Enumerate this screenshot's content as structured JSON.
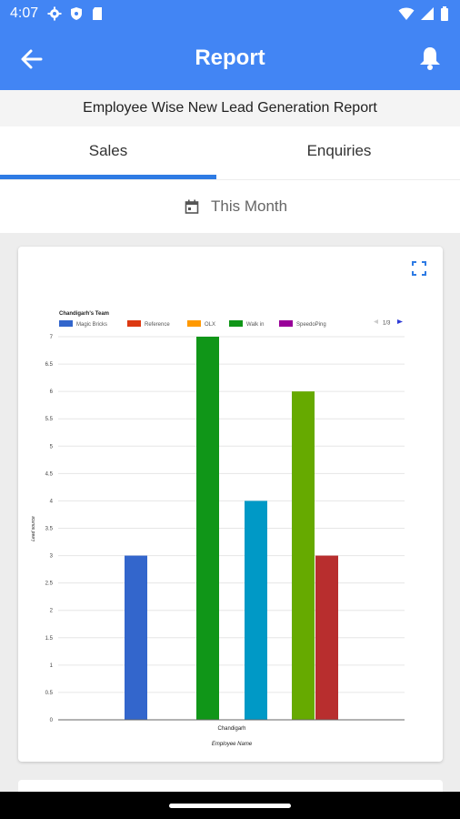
{
  "status_bar": {
    "time": "4:07",
    "icons": [
      "gear-icon",
      "shield-icon",
      "sim-icon"
    ],
    "right_icons": [
      "wifi-icon",
      "signal-icon",
      "battery-icon"
    ]
  },
  "app_bar": {
    "title": "Report",
    "back_icon": "arrow-left-icon",
    "notify_icon": "bell-icon"
  },
  "report_title": "Employee Wise New Lead Generation Report",
  "tabs": [
    {
      "label": "Sales",
      "active": true
    },
    {
      "label": "Enquiries",
      "active": false
    }
  ],
  "date_filter": {
    "label": "This Month",
    "icon": "calendar-icon"
  },
  "colors": {
    "primary": "#4285f4",
    "indicator": "#2e7be4"
  },
  "chart_data": {
    "type": "bar",
    "title": "Chandigarh's Team",
    "xlabel": "Employee Name",
    "ylabel": "Lead source",
    "categories": [
      "Chandigarh"
    ],
    "ylim": [
      0,
      7
    ],
    "yticks": [
      "0",
      "0.5",
      "1",
      "1.5",
      "2",
      "2.5",
      "3",
      "3.5",
      "4",
      "4.5",
      "5",
      "5.5",
      "6",
      "6.5",
      "7"
    ],
    "legend": {
      "placement": "top",
      "items": [
        {
          "name": "Magic Bricks",
          "color": "#3366cc"
        },
        {
          "name": "Reference",
          "color": "#dc3912"
        },
        {
          "name": "OLX",
          "color": "#ff9900"
        },
        {
          "name": "Walk in",
          "color": "#109618"
        },
        {
          "name": "SpeedoPing",
          "color": "#990099"
        }
      ],
      "pager": "1/3"
    },
    "series": [
      {
        "value": 3,
        "color": "#3366cc"
      },
      {
        "value": 7,
        "color": "#109618"
      },
      {
        "value": 4,
        "color": "#0099c6"
      },
      {
        "value": 6,
        "color": "#66aa00"
      },
      {
        "value": 3,
        "color": "#b82e2e"
      }
    ]
  }
}
